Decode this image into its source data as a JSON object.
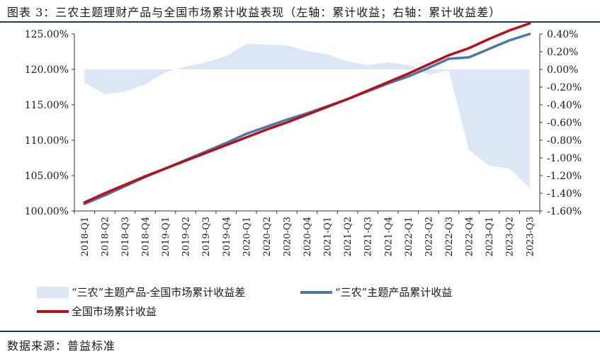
{
  "header": {
    "title": "图表 3：三农主题理财产品与全国市场累计收益表现（左轴：累计收益；右轴：累计收益差）"
  },
  "footer": {
    "source": "数据来源：普益标准"
  },
  "colors": {
    "diff_fill": "#dbe7f5",
    "sannong_line": "#4a78a8",
    "market_line": "#b4111a",
    "axis": "#333333"
  },
  "chart_data": {
    "type": "line",
    "categories": [
      "2018-Q1",
      "2018-Q2",
      "2018-Q3",
      "2018-Q4",
      "2019-Q1",
      "2019-Q2",
      "2019-Q3",
      "2019-Q4",
      "2020-Q1",
      "2020-Q2",
      "2020-Q3",
      "2020-Q4",
      "2021-Q1",
      "2021-Q2",
      "2021-Q3",
      "2021-Q4",
      "2022-Q1",
      "2022-Q2",
      "2022-Q3",
      "2022-Q4",
      "2023-Q1",
      "2023-Q2",
      "2023-Q3"
    ],
    "left_axis": {
      "ylim": [
        100,
        125
      ],
      "ticks": [
        100,
        105,
        110,
        115,
        120,
        125
      ],
      "tick_labels": [
        "100.00%",
        "105.00%",
        "110.00%",
        "115.00%",
        "120.00%",
        "125.00%"
      ]
    },
    "right_axis": {
      "ylim": [
        -1.6,
        0.4
      ],
      "ticks": [
        0.4,
        0.2,
        0,
        -0.2,
        -0.4,
        -0.6,
        -0.8,
        -1.0,
        -1.2,
        -1.4,
        -1.6
      ],
      "tick_labels": [
        "0.40%",
        "0.20%",
        "0.00%",
        "-0.20%",
        "-0.40%",
        "-0.60%",
        "-0.80%",
        "-1.00%",
        "-1.20%",
        "-1.40%",
        "-1.60%"
      ]
    },
    "series": [
      {
        "name": "“三农”主题产品-全国市场累计收益差",
        "type": "area",
        "axis": "right",
        "values": [
          -0.15,
          -0.28,
          -0.25,
          -0.17,
          -0.03,
          0.03,
          0.08,
          0.15,
          0.29,
          0.28,
          0.27,
          0.21,
          0.17,
          0.09,
          0.05,
          0.08,
          0.05,
          -0.06,
          -0.01,
          -0.91,
          -1.09,
          -1.12,
          -1.34
        ]
      },
      {
        "name": "“三农”主题产品累计收益",
        "type": "line",
        "axis": "left",
        "values": [
          101.0,
          102.2,
          103.5,
          104.8,
          106.0,
          107.2,
          108.4,
          109.6,
          110.9,
          111.9,
          112.9,
          113.8,
          114.8,
          115.8,
          116.9,
          118.0,
          119.0,
          120.2,
          121.5,
          121.7,
          122.9,
          124.1,
          125.0
        ]
      },
      {
        "name": "全国市场累计收益",
        "type": "line",
        "axis": "left",
        "values": [
          101.2,
          102.5,
          103.7,
          104.9,
          106.0,
          107.1,
          108.2,
          109.3,
          110.4,
          111.5,
          112.5,
          113.6,
          114.7,
          115.8,
          117.0,
          118.2,
          119.4,
          120.7,
          122.0,
          123.0,
          124.3,
          125.5,
          126.5
        ]
      }
    ]
  },
  "legend": {
    "diff_label": "“三农”主题产品-全国市场累计收益差",
    "sannong_label": "“三农”主题产品累计收益",
    "market_label": "全国市场累计收益"
  }
}
